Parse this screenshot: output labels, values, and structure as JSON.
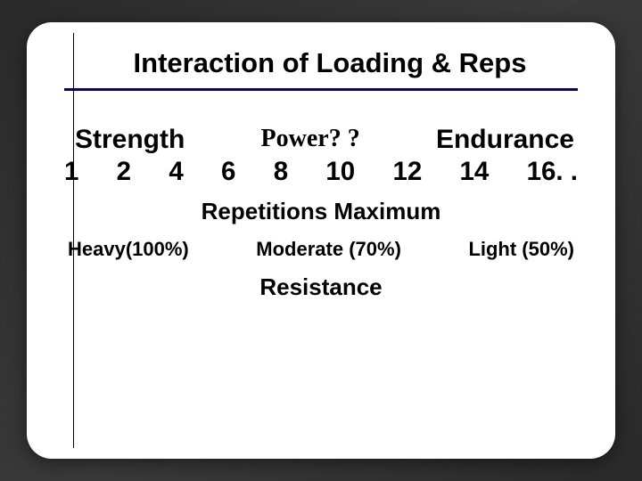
{
  "slide": {
    "title": "Interaction of Loading & Reps",
    "background_color": "#ffffff",
    "border_radius": 28,
    "title_fontsize": 31,
    "title_underline_color": "#050567",
    "title_underline_height": 3
  },
  "categories": {
    "strength": "Strength",
    "power": "Power? ?",
    "endurance": "Endurance",
    "fontsize": 30,
    "power_font": "Times New Roman"
  },
  "reps": {
    "values": [
      "1",
      "2",
      "4",
      "6",
      "8",
      "10",
      "12",
      "14",
      "16. ."
    ],
    "fontsize": 29.5,
    "label": "Repetitions Maximum",
    "label_fontsize": 26
  },
  "loads": {
    "heavy": "Heavy(100%)",
    "moderate": "Moderate (70%)",
    "light": "Light (50%)",
    "fontsize": 22,
    "label": "Resistance",
    "label_fontsize": 26
  },
  "colors": {
    "text": "#000000",
    "slide_bg": "#ffffff",
    "page_bg": "#2a2a2a"
  }
}
